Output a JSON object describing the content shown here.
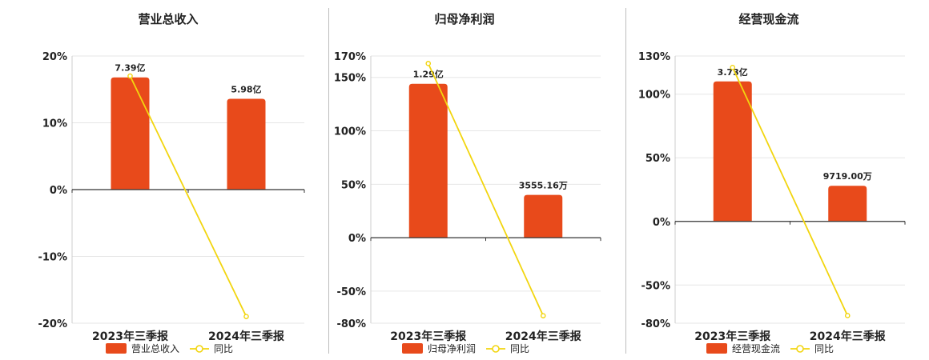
{
  "colors": {
    "bar": "#E84A1B",
    "line": "#F2D50F",
    "grid": "#e6e6e6",
    "axis": "#333333"
  },
  "chart_data": [
    {
      "type": "bar",
      "title": "营业总收入",
      "categories": [
        "2023年三季报",
        "2024年三季报"
      ],
      "series": [
        {
          "name": "营业总收入",
          "type": "bar",
          "values": [
            16.8,
            13.6
          ],
          "labels": [
            "7.39亿",
            "5.98亿"
          ]
        },
        {
          "name": "同比",
          "type": "line",
          "values": [
            17.0,
            -19.0
          ]
        }
      ],
      "ylim": [
        -20,
        20
      ],
      "yticks": [
        -20,
        -10,
        0,
        10,
        20
      ],
      "ytick_labels": [
        "-20%",
        "-10%",
        "0%",
        "10%",
        "20%"
      ],
      "grid": true,
      "legend": "bottom"
    },
    {
      "type": "bar",
      "title": "归母净利润",
      "categories": [
        "2023年三季报",
        "2024年三季报"
      ],
      "series": [
        {
          "name": "归母净利润",
          "type": "bar",
          "values": [
            144,
            40
          ],
          "labels": [
            "1.29亿",
            "3555.16万"
          ]
        },
        {
          "name": "同比",
          "type": "line",
          "values": [
            163,
            -73
          ]
        }
      ],
      "ylim": [
        -80,
        170
      ],
      "yticks": [
        -80,
        -50,
        0,
        50,
        100,
        150,
        170
      ],
      "ytick_labels": [
        "-80%",
        "-50%",
        "0%",
        "50%",
        "100%",
        "150%",
        "170%"
      ],
      "grid": true,
      "legend": "bottom"
    },
    {
      "type": "bar",
      "title": "经营现金流",
      "categories": [
        "2023年三季报",
        "2024年三季报"
      ],
      "series": [
        {
          "name": "经营现金流",
          "type": "bar",
          "values": [
            110,
            28
          ],
          "labels": [
            "3.73亿",
            "9719.00万"
          ]
        },
        {
          "name": "同比",
          "type": "line",
          "values": [
            121,
            -74
          ]
        }
      ],
      "ylim": [
        -80,
        130
      ],
      "yticks": [
        -80,
        -50,
        0,
        50,
        100,
        130
      ],
      "ytick_labels": [
        "-80%",
        "-50%",
        "0%",
        "50%",
        "100%",
        "130%"
      ],
      "grid": true,
      "legend": "bottom"
    }
  ]
}
